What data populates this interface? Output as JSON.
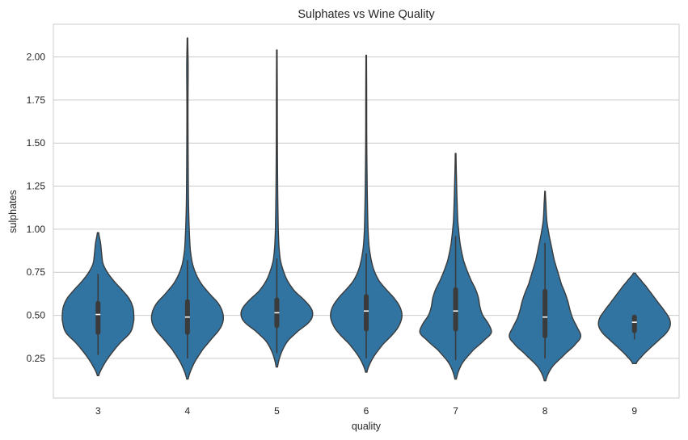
{
  "chart_data": {
    "type": "violin",
    "title": "Sulphates vs Wine Quality",
    "xlabel": "quality",
    "ylabel": "sulphates",
    "ylim": [
      0.02,
      2.19
    ],
    "yticks": [
      0.25,
      0.5,
      0.75,
      1.0,
      1.25,
      1.5,
      1.75,
      2.0
    ],
    "ytick_labels": [
      "0.25",
      "0.50",
      "0.75",
      "1.00",
      "1.25",
      "1.50",
      "1.75",
      "2.00"
    ],
    "grid": "horizontal",
    "colors": {
      "violin": "#3274a1",
      "outline": "#3b3b3b",
      "grid": "#cccccc",
      "median": "#ffffff"
    },
    "categories": [
      "3",
      "4",
      "5",
      "6",
      "7",
      "8",
      "9"
    ],
    "violins": [
      {
        "category": "3",
        "min": 0.15,
        "max": 0.98,
        "q1": 0.4,
        "median": 0.505,
        "q3": 0.57,
        "whisker_low": 0.27,
        "whisker_high": 0.74,
        "profile": [
          [
            0.15,
            0.02
          ],
          [
            0.22,
            0.18
          ],
          [
            0.28,
            0.38
          ],
          [
            0.34,
            0.62
          ],
          [
            0.4,
            0.9
          ],
          [
            0.46,
            0.99
          ],
          [
            0.5,
            1.0
          ],
          [
            0.55,
            0.97
          ],
          [
            0.6,
            0.86
          ],
          [
            0.65,
            0.66
          ],
          [
            0.7,
            0.44
          ],
          [
            0.75,
            0.26
          ],
          [
            0.8,
            0.14
          ],
          [
            0.86,
            0.1
          ],
          [
            0.92,
            0.07
          ],
          [
            0.98,
            0.02
          ]
        ]
      },
      {
        "category": "4",
        "min": 0.13,
        "max": 2.11,
        "q1": 0.4,
        "median": 0.49,
        "q3": 0.58,
        "whisker_low": 0.25,
        "whisker_high": 0.82,
        "profile": [
          [
            0.13,
            0.02
          ],
          [
            0.22,
            0.18
          ],
          [
            0.3,
            0.42
          ],
          [
            0.36,
            0.66
          ],
          [
            0.42,
            0.9
          ],
          [
            0.47,
            1.0
          ],
          [
            0.52,
            0.98
          ],
          [
            0.57,
            0.86
          ],
          [
            0.62,
            0.64
          ],
          [
            0.68,
            0.4
          ],
          [
            0.74,
            0.24
          ],
          [
            0.8,
            0.14
          ],
          [
            0.88,
            0.08
          ],
          [
            1.0,
            0.05
          ],
          [
            1.15,
            0.03
          ],
          [
            1.4,
            0.02
          ],
          [
            1.7,
            0.015
          ],
          [
            1.95,
            0.02
          ],
          [
            2.11,
            0.008
          ]
        ]
      },
      {
        "category": "5",
        "min": 0.2,
        "max": 2.04,
        "q1": 0.44,
        "median": 0.515,
        "q3": 0.59,
        "whisker_low": 0.28,
        "whisker_high": 0.83,
        "profile": [
          [
            0.2,
            0.02
          ],
          [
            0.28,
            0.12
          ],
          [
            0.35,
            0.3
          ],
          [
            0.41,
            0.6
          ],
          [
            0.46,
            0.9
          ],
          [
            0.5,
            1.0
          ],
          [
            0.54,
            0.96
          ],
          [
            0.59,
            0.76
          ],
          [
            0.64,
            0.5
          ],
          [
            0.7,
            0.3
          ],
          [
            0.76,
            0.18
          ],
          [
            0.82,
            0.1
          ],
          [
            0.9,
            0.06
          ],
          [
            1.0,
            0.04
          ],
          [
            1.2,
            0.025
          ],
          [
            1.5,
            0.015
          ],
          [
            1.8,
            0.012
          ],
          [
            2.04,
            0.008
          ]
        ]
      },
      {
        "category": "6",
        "min": 0.17,
        "max": 2.01,
        "q1": 0.42,
        "median": 0.525,
        "q3": 0.61,
        "whisker_low": 0.25,
        "whisker_high": 0.86,
        "profile": [
          [
            0.17,
            0.02
          ],
          [
            0.25,
            0.18
          ],
          [
            0.33,
            0.46
          ],
          [
            0.4,
            0.78
          ],
          [
            0.45,
            0.94
          ],
          [
            0.5,
            1.0
          ],
          [
            0.55,
            0.94
          ],
          [
            0.6,
            0.78
          ],
          [
            0.65,
            0.56
          ],
          [
            0.7,
            0.36
          ],
          [
            0.76,
            0.22
          ],
          [
            0.82,
            0.14
          ],
          [
            0.9,
            0.08
          ],
          [
            1.0,
            0.05
          ],
          [
            1.2,
            0.03
          ],
          [
            1.5,
            0.015
          ],
          [
            1.8,
            0.012
          ],
          [
            2.01,
            0.008
          ]
        ]
      },
      {
        "category": "7",
        "min": 0.13,
        "max": 1.44,
        "q1": 0.42,
        "median": 0.525,
        "q3": 0.65,
        "whisker_low": 0.24,
        "whisker_high": 0.96,
        "profile": [
          [
            0.13,
            0.02
          ],
          [
            0.22,
            0.18
          ],
          [
            0.3,
            0.5
          ],
          [
            0.36,
            0.82
          ],
          [
            0.4,
            1.0
          ],
          [
            0.45,
            0.92
          ],
          [
            0.5,
            0.76
          ],
          [
            0.55,
            0.68
          ],
          [
            0.6,
            0.64
          ],
          [
            0.65,
            0.56
          ],
          [
            0.7,
            0.44
          ],
          [
            0.76,
            0.32
          ],
          [
            0.82,
            0.22
          ],
          [
            0.9,
            0.14
          ],
          [
            0.96,
            0.1
          ],
          [
            1.05,
            0.06
          ],
          [
            1.2,
            0.035
          ],
          [
            1.44,
            0.01
          ]
        ]
      },
      {
        "category": "8",
        "min": 0.12,
        "max": 1.22,
        "q1": 0.38,
        "median": 0.49,
        "q3": 0.64,
        "whisker_low": 0.25,
        "whisker_high": 0.92,
        "profile": [
          [
            0.12,
            0.02
          ],
          [
            0.2,
            0.2
          ],
          [
            0.28,
            0.58
          ],
          [
            0.34,
            0.88
          ],
          [
            0.38,
            1.0
          ],
          [
            0.43,
            0.9
          ],
          [
            0.48,
            0.78
          ],
          [
            0.53,
            0.7
          ],
          [
            0.58,
            0.64
          ],
          [
            0.63,
            0.56
          ],
          [
            0.68,
            0.46
          ],
          [
            0.75,
            0.36
          ],
          [
            0.82,
            0.26
          ],
          [
            0.9,
            0.18
          ],
          [
            0.97,
            0.11
          ],
          [
            1.05,
            0.05
          ],
          [
            1.15,
            0.025
          ],
          [
            1.22,
            0.008
          ]
        ]
      },
      {
        "category": "9",
        "min": 0.22,
        "max": 0.745,
        "q1": 0.41,
        "median": 0.46,
        "q3": 0.49,
        "whisker_low": 0.36,
        "whisker_high": 0.5,
        "profile": [
          [
            0.22,
            0.05
          ],
          [
            0.26,
            0.2
          ],
          [
            0.31,
            0.44
          ],
          [
            0.36,
            0.7
          ],
          [
            0.4,
            0.9
          ],
          [
            0.44,
            1.0
          ],
          [
            0.48,
            0.98
          ],
          [
            0.52,
            0.86
          ],
          [
            0.57,
            0.68
          ],
          [
            0.62,
            0.5
          ],
          [
            0.67,
            0.32
          ],
          [
            0.71,
            0.16
          ],
          [
            0.745,
            0.03
          ]
        ]
      }
    ]
  }
}
